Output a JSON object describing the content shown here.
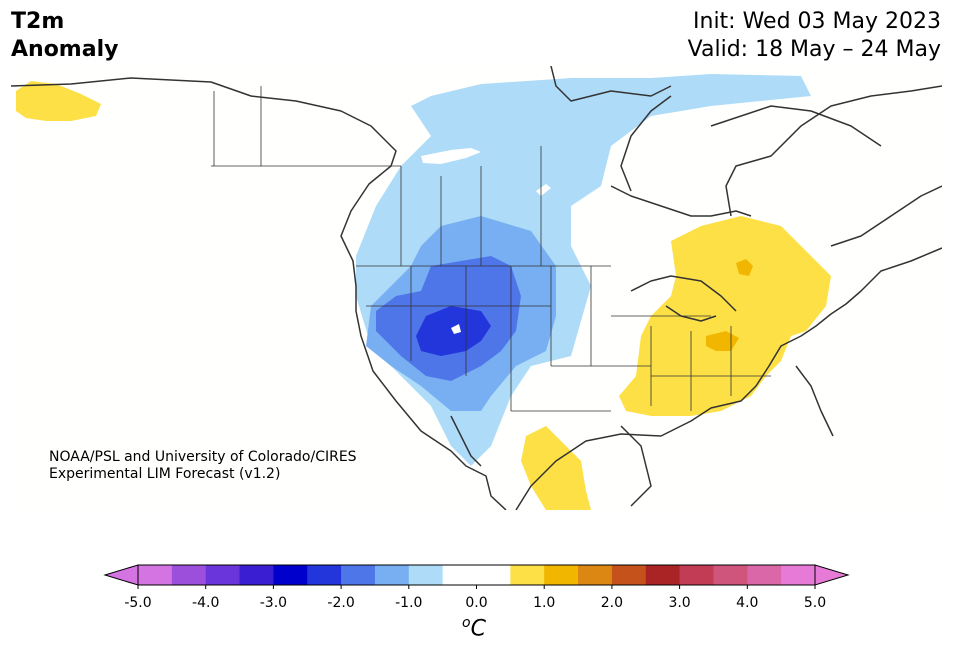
{
  "header": {
    "title_line1": "T2m",
    "title_line2": "Anomaly",
    "init": "Init: Wed 03 May 2023",
    "valid": "Valid: 18 May – 24 May"
  },
  "credit": {
    "line1": "NOAA/PSL and University of Colorado/CIRES",
    "line2": "Experimental LIM Forecast (v1.2)"
  },
  "colorbar": {
    "unit_base": "C",
    "unit_sup": "o",
    "ticks": [
      "-5.0",
      "-4.0",
      "-3.0",
      "-2.0",
      "-1.0",
      "0.0",
      "1.0",
      "2.0",
      "3.0",
      "4.0",
      "5.0"
    ],
    "colors": [
      "#d474e2",
      "#9c4fdb",
      "#6a35da",
      "#3a1ed2",
      "#0000cd",
      "#2236dc",
      "#4f76e8",
      "#78aff2",
      "#aedcf8",
      "#ffffff",
      "#ffffff",
      "#fde046",
      "#f0b600",
      "#dc8614",
      "#c4521a",
      "#aa2426",
      "#c23c55",
      "#d0557c",
      "#da68a8",
      "#e77ad6"
    ],
    "under_color": "#d474e2",
    "over_color": "#e77ad6"
  }
}
